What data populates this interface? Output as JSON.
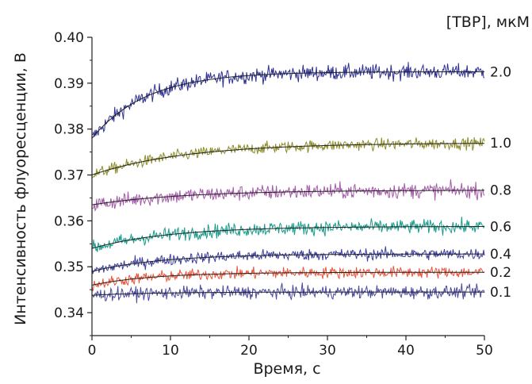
{
  "chart_data": {
    "type": "line",
    "xlabel": "Время, с",
    "ylabel": "Интенсивность флуоресценции, В",
    "legend_title": "[TBP], мкМ",
    "legend_placement": "right",
    "xlim": [
      0,
      50
    ],
    "ylim": [
      0.335,
      0.4
    ],
    "x_ticks": [
      0,
      10,
      20,
      30,
      40,
      50
    ],
    "x_tick_labels": [
      "0",
      "10",
      "20",
      "30",
      "40",
      "50"
    ],
    "y_ticks": [
      0.34,
      0.35,
      0.36,
      0.37,
      0.38,
      0.39,
      0.4
    ],
    "y_tick_labels": [
      "0.34",
      "0.35",
      "0.36",
      "0.37",
      "0.38",
      "0.39",
      "0.40"
    ],
    "grid": false,
    "series": [
      {
        "name": "2.0",
        "color": "#2e3192",
        "start": 0.378,
        "plateau": 0.3925,
        "tau": 7.0,
        "noise": 0.0012
      },
      {
        "name": "1.0",
        "color": "#8c8c2a",
        "start": 0.37,
        "plateau": 0.377,
        "tau": 12.0,
        "noise": 0.0009
      },
      {
        "name": "0.8",
        "color": "#a35aa8",
        "start": 0.3635,
        "plateau": 0.3667,
        "tau": 12.0,
        "noise": 0.0012
      },
      {
        "name": "0.6",
        "color": "#1a9c8c",
        "start": 0.354,
        "plateau": 0.3588,
        "tau": 10.0,
        "noise": 0.0011
      },
      {
        "name": "0.4",
        "color": "#3b3f9e",
        "start": 0.349,
        "plateau": 0.3528,
        "tau": 9.0,
        "noise": 0.0009
      },
      {
        "name": "0.2",
        "color": "#e8553b",
        "start": 0.346,
        "plateau": 0.3488,
        "tau": 8.0,
        "noise": 0.0009
      },
      {
        "name": "0.1",
        "color": "#4a4aa0",
        "start": 0.3438,
        "plateau": 0.3445,
        "tau": 8.0,
        "noise": 0.001
      }
    ]
  }
}
